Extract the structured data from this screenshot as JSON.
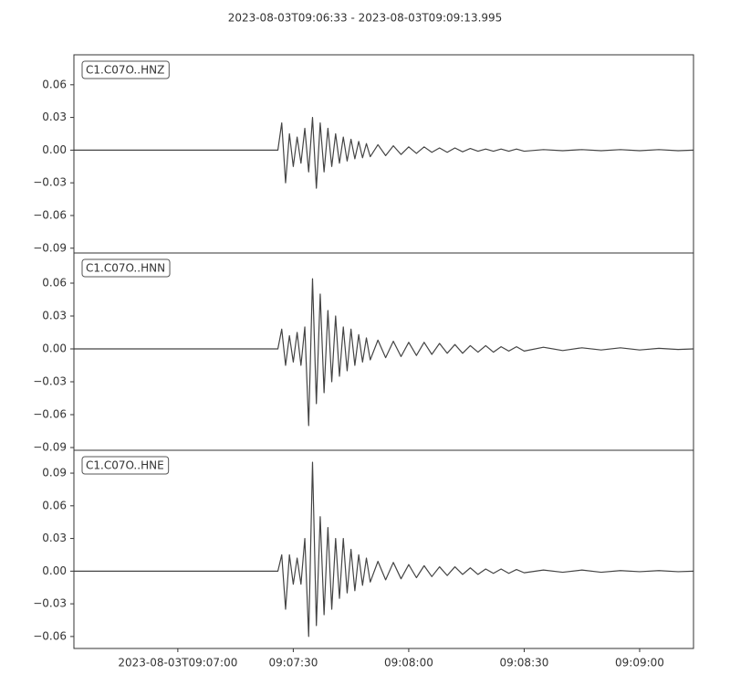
{
  "chart_data": [
    {
      "type": "line",
      "title": "2023-08-03T09:06:33  -  2023-08-03T09:09:13.995",
      "label": "C1.C07O..HNZ",
      "color": "#444444",
      "xlim": [
        "2023-08-03T09:06:33",
        "2023-08-03T09:09:13.995"
      ],
      "ylim": [
        -0.0944,
        0.0875
      ],
      "yticks": [
        {
          "value": 0.06,
          "label": "0.06"
        },
        {
          "value": 0.03,
          "label": "0.03"
        },
        {
          "value": 0,
          "label": "0.00"
        },
        {
          "value": -0.03,
          "label": "−0.03"
        },
        {
          "value": -0.06,
          "label": "−0.06"
        },
        {
          "value": -0.09,
          "label": "−0.09"
        }
      ],
      "x": [
        "2023-08-03T09:06:33",
        "2023-08-03T09:07:00",
        "2023-08-03T09:07:26",
        "2023-08-03T09:07:27",
        "2023-08-03T09:07:28",
        "2023-08-03T09:07:29",
        "2023-08-03T09:07:30",
        "2023-08-03T09:07:31",
        "2023-08-03T09:07:32",
        "2023-08-03T09:07:33",
        "2023-08-03T09:07:34",
        "2023-08-03T09:07:35",
        "2023-08-03T09:07:36",
        "2023-08-03T09:07:37",
        "2023-08-03T09:07:38",
        "2023-08-03T09:07:39",
        "2023-08-03T09:07:40",
        "2023-08-03T09:07:41",
        "2023-08-03T09:07:42",
        "2023-08-03T09:07:43",
        "2023-08-03T09:07:44",
        "2023-08-03T09:07:45",
        "2023-08-03T09:07:46",
        "2023-08-03T09:07:47",
        "2023-08-03T09:07:48",
        "2023-08-03T09:07:49",
        "2023-08-03T09:07:50",
        "2023-08-03T09:07:52",
        "2023-08-03T09:07:54",
        "2023-08-03T09:07:56",
        "2023-08-03T09:07:58",
        "2023-08-03T09:08:00",
        "2023-08-03T09:08:02",
        "2023-08-03T09:08:04",
        "2023-08-03T09:08:06",
        "2023-08-03T09:08:08",
        "2023-08-03T09:08:10",
        "2023-08-03T09:08:12",
        "2023-08-03T09:08:14",
        "2023-08-03T09:08:16",
        "2023-08-03T09:08:18",
        "2023-08-03T09:08:20",
        "2023-08-03T09:08:22",
        "2023-08-03T09:08:24",
        "2023-08-03T09:08:26",
        "2023-08-03T09:08:28",
        "2023-08-03T09:08:30",
        "2023-08-03T09:08:35",
        "2023-08-03T09:08:40",
        "2023-08-03T09:08:45",
        "2023-08-03T09:08:50",
        "2023-08-03T09:08:55",
        "2023-08-03T09:09:00",
        "2023-08-03T09:09:05",
        "2023-08-03T09:09:10",
        "2023-08-03T09:09:13.995"
      ],
      "values": [
        0,
        0,
        0,
        0.025,
        -0.03,
        0.015,
        -0.015,
        0.012,
        -0.012,
        0.02,
        -0.02,
        0.03,
        -0.035,
        0.025,
        -0.02,
        0.02,
        -0.015,
        0.015,
        -0.012,
        0.012,
        -0.01,
        0.01,
        -0.008,
        0.008,
        -0.007,
        0.006,
        -0.006,
        0.005,
        -0.005,
        0.004,
        -0.004,
        0.003,
        -0.003,
        0.003,
        -0.002,
        0.002,
        -0.002,
        0.002,
        -0.0015,
        0.0015,
        -0.001,
        0.001,
        -0.001,
        0.001,
        -0.001,
        0.001,
        -0.001,
        0.0005,
        -0.0005,
        0.0005,
        -0.0005,
        0.0005,
        -0.0005,
        0.0005,
        -0.0005,
        0
      ]
    },
    {
      "type": "line",
      "label": "C1.C07O..HNN",
      "color": "#444444",
      "xlim": [
        "2023-08-03T09:06:33",
        "2023-08-03T09:09:13.995"
      ],
      "ylim": [
        -0.0925,
        0.0875
      ],
      "yticks": [
        {
          "value": 0.06,
          "label": "0.06"
        },
        {
          "value": 0.03,
          "label": "0.03"
        },
        {
          "value": 0,
          "label": "0.00"
        },
        {
          "value": -0.03,
          "label": "−0.03"
        },
        {
          "value": -0.06,
          "label": "−0.06"
        },
        {
          "value": -0.09,
          "label": "−0.09"
        }
      ],
      "x": [
        "2023-08-03T09:06:33",
        "2023-08-03T09:07:00",
        "2023-08-03T09:07:26",
        "2023-08-03T09:07:27",
        "2023-08-03T09:07:28",
        "2023-08-03T09:07:29",
        "2023-08-03T09:07:30",
        "2023-08-03T09:07:31",
        "2023-08-03T09:07:32",
        "2023-08-03T09:07:33",
        "2023-08-03T09:07:34",
        "2023-08-03T09:07:35",
        "2023-08-03T09:07:36",
        "2023-08-03T09:07:37",
        "2023-08-03T09:07:38",
        "2023-08-03T09:07:39",
        "2023-08-03T09:07:40",
        "2023-08-03T09:07:41",
        "2023-08-03T09:07:42",
        "2023-08-03T09:07:43",
        "2023-08-03T09:07:44",
        "2023-08-03T09:07:45",
        "2023-08-03T09:07:46",
        "2023-08-03T09:07:47",
        "2023-08-03T09:07:48",
        "2023-08-03T09:07:49",
        "2023-08-03T09:07:50",
        "2023-08-03T09:07:52",
        "2023-08-03T09:07:54",
        "2023-08-03T09:07:56",
        "2023-08-03T09:07:58",
        "2023-08-03T09:08:00",
        "2023-08-03T09:08:02",
        "2023-08-03T09:08:04",
        "2023-08-03T09:08:06",
        "2023-08-03T09:08:08",
        "2023-08-03T09:08:10",
        "2023-08-03T09:08:12",
        "2023-08-03T09:08:14",
        "2023-08-03T09:08:16",
        "2023-08-03T09:08:18",
        "2023-08-03T09:08:20",
        "2023-08-03T09:08:22",
        "2023-08-03T09:08:24",
        "2023-08-03T09:08:26",
        "2023-08-03T09:08:28",
        "2023-08-03T09:08:30",
        "2023-08-03T09:08:35",
        "2023-08-03T09:08:40",
        "2023-08-03T09:08:45",
        "2023-08-03T09:08:50",
        "2023-08-03T09:08:55",
        "2023-08-03T09:09:00",
        "2023-08-03T09:09:05",
        "2023-08-03T09:09:10",
        "2023-08-03T09:09:13.995"
      ],
      "values": [
        0,
        0,
        0,
        0.018,
        -0.015,
        0.012,
        -0.012,
        0.015,
        -0.015,
        0.02,
        -0.07,
        0.064,
        -0.05,
        0.05,
        -0.04,
        0.035,
        -0.03,
        0.03,
        -0.025,
        0.02,
        -0.02,
        0.018,
        -0.015,
        0.013,
        -0.012,
        0.01,
        -0.01,
        0.008,
        -0.008,
        0.007,
        -0.007,
        0.006,
        -0.006,
        0.006,
        -0.005,
        0.005,
        -0.004,
        0.004,
        -0.004,
        0.003,
        -0.003,
        0.003,
        -0.003,
        0.002,
        -0.002,
        0.002,
        -0.002,
        0.0015,
        -0.0015,
        0.001,
        -0.001,
        0.001,
        -0.001,
        0.0005,
        -0.0005,
        0
      ]
    },
    {
      "type": "line",
      "label": "C1.C07O..HNE",
      "color": "#444444",
      "xlim": [
        "2023-08-03T09:06:33",
        "2023-08-03T09:09:13.995"
      ],
      "ylim": [
        -0.071,
        0.111
      ],
      "yticks": [
        {
          "value": 0.09,
          "label": "0.09"
        },
        {
          "value": 0.06,
          "label": "0.06"
        },
        {
          "value": 0.03,
          "label": "0.03"
        },
        {
          "value": 0,
          "label": "0.00"
        },
        {
          "value": -0.03,
          "label": "−0.03"
        },
        {
          "value": -0.06,
          "label": "−0.06"
        }
      ],
      "xticks": [
        {
          "value": "2023-08-03T09:07:00",
          "label": "2023-08-03T09:07:00"
        },
        {
          "value": "2023-08-03T09:07:30",
          "label": "09:07:30"
        },
        {
          "value": "2023-08-03T09:08:00",
          "label": "09:08:00"
        },
        {
          "value": "2023-08-03T09:08:30",
          "label": "09:08:30"
        },
        {
          "value": "2023-08-03T09:09:00",
          "label": "09:09:00"
        }
      ],
      "x": [
        "2023-08-03T09:06:33",
        "2023-08-03T09:07:00",
        "2023-08-03T09:07:26",
        "2023-08-03T09:07:27",
        "2023-08-03T09:07:28",
        "2023-08-03T09:07:29",
        "2023-08-03T09:07:30",
        "2023-08-03T09:07:31",
        "2023-08-03T09:07:32",
        "2023-08-03T09:07:33",
        "2023-08-03T09:07:34",
        "2023-08-03T09:07:35",
        "2023-08-03T09:07:36",
        "2023-08-03T09:07:37",
        "2023-08-03T09:07:38",
        "2023-08-03T09:07:39",
        "2023-08-03T09:07:40",
        "2023-08-03T09:07:41",
        "2023-08-03T09:07:42",
        "2023-08-03T09:07:43",
        "2023-08-03T09:07:44",
        "2023-08-03T09:07:45",
        "2023-08-03T09:07:46",
        "2023-08-03T09:07:47",
        "2023-08-03T09:07:48",
        "2023-08-03T09:07:49",
        "2023-08-03T09:07:50",
        "2023-08-03T09:07:52",
        "2023-08-03T09:07:54",
        "2023-08-03T09:07:56",
        "2023-08-03T09:07:58",
        "2023-08-03T09:08:00",
        "2023-08-03T09:08:02",
        "2023-08-03T09:08:04",
        "2023-08-03T09:08:06",
        "2023-08-03T09:08:08",
        "2023-08-03T09:08:10",
        "2023-08-03T09:08:12",
        "2023-08-03T09:08:14",
        "2023-08-03T09:08:16",
        "2023-08-03T09:08:18",
        "2023-08-03T09:08:20",
        "2023-08-03T09:08:22",
        "2023-08-03T09:08:24",
        "2023-08-03T09:08:26",
        "2023-08-03T09:08:28",
        "2023-08-03T09:08:30",
        "2023-08-03T09:08:35",
        "2023-08-03T09:08:40",
        "2023-08-03T09:08:45",
        "2023-08-03T09:08:50",
        "2023-08-03T09:08:55",
        "2023-08-03T09:09:00",
        "2023-08-03T09:09:05",
        "2023-08-03T09:09:10",
        "2023-08-03T09:09:13.995"
      ],
      "values": [
        0,
        0,
        0,
        0.015,
        -0.035,
        0.015,
        -0.012,
        0.012,
        -0.012,
        0.03,
        -0.06,
        0.1,
        -0.05,
        0.05,
        -0.04,
        0.04,
        -0.035,
        0.03,
        -0.025,
        0.03,
        -0.02,
        0.02,
        -0.018,
        0.015,
        -0.013,
        0.012,
        -0.01,
        0.009,
        -0.008,
        0.008,
        -0.007,
        0.006,
        -0.006,
        0.005,
        -0.005,
        0.004,
        -0.004,
        0.004,
        -0.003,
        0.003,
        -0.003,
        0.002,
        -0.002,
        0.002,
        -0.002,
        0.0015,
        -0.0015,
        0.001,
        -0.001,
        0.001,
        -0.001,
        0.0005,
        -0.0005,
        0.0005,
        -0.0005,
        0
      ]
    }
  ]
}
